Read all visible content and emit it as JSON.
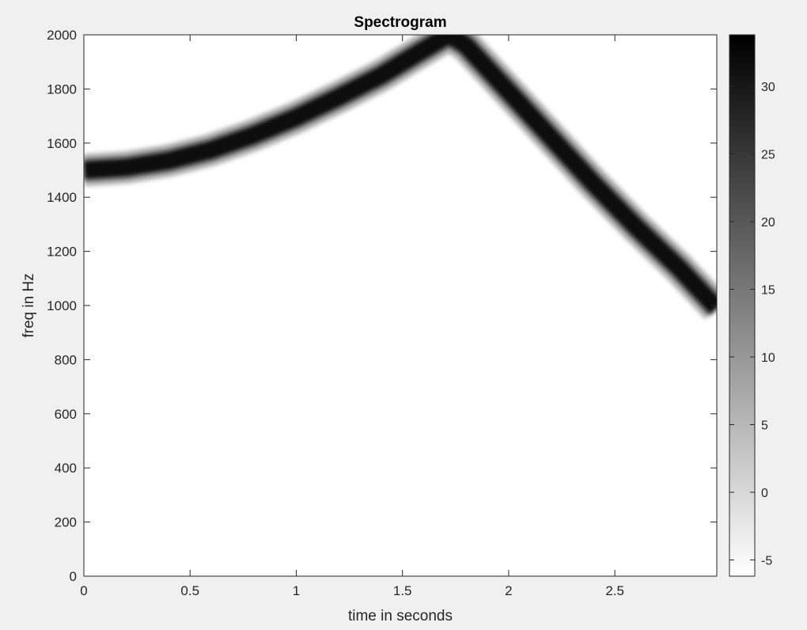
{
  "chart_data": {
    "type": "heatmap",
    "title": "Spectrogram",
    "xlabel": "time in seconds",
    "ylabel": "freq in Hz",
    "xlim": [
      0,
      2.98
    ],
    "ylim": [
      0,
      2000
    ],
    "xticks": [
      0,
      0.5,
      1,
      1.5,
      2,
      2.5
    ],
    "xtick_labels": [
      "0",
      "0.5",
      "1",
      "1.5",
      "2",
      "2.5"
    ],
    "yticks": [
      0,
      200,
      400,
      600,
      800,
      1000,
      1200,
      1400,
      1600,
      1800,
      2000
    ],
    "ytick_labels": [
      "0",
      "200",
      "400",
      "600",
      "800",
      "1000",
      "1200",
      "1400",
      "1600",
      "1800",
      "2000"
    ],
    "colormap": "gray-inverted",
    "colorbar": {
      "range": [
        -6.2,
        33.8
      ],
      "ticks": [
        -5,
        0,
        5,
        10,
        15,
        20,
        25,
        30
      ],
      "tick_labels": [
        "-5",
        "0",
        "5",
        "10",
        "15",
        "20",
        "25",
        "30"
      ]
    },
    "ridge": [
      {
        "t": 0.0,
        "f": 1500
      },
      {
        "t": 0.2,
        "f": 1510
      },
      {
        "t": 0.4,
        "f": 1535
      },
      {
        "t": 0.6,
        "f": 1575
      },
      {
        "t": 0.8,
        "f": 1630
      },
      {
        "t": 1.0,
        "f": 1695
      },
      {
        "t": 1.2,
        "f": 1770
      },
      {
        "t": 1.4,
        "f": 1850
      },
      {
        "t": 1.6,
        "f": 1945
      },
      {
        "t": 1.72,
        "f": 2000
      },
      {
        "t": 1.8,
        "f": 1960
      },
      {
        "t": 2.0,
        "f": 1790
      },
      {
        "t": 2.2,
        "f": 1620
      },
      {
        "t": 2.4,
        "f": 1450
      },
      {
        "t": 2.6,
        "f": 1290
      },
      {
        "t": 2.8,
        "f": 1140
      },
      {
        "t": 2.98,
        "f": 990
      }
    ],
    "ridge_peak_level": 33,
    "background_level": -6,
    "colors": {
      "figure_bg": "#f0f0f0",
      "axes_bg": "#ffffff",
      "ridge": "#111111"
    }
  }
}
